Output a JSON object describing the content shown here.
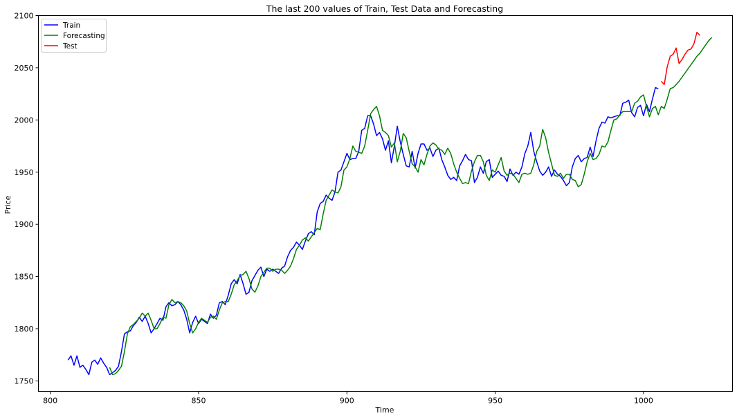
{
  "chart_data": {
    "type": "line",
    "title": "The last 200 values of Train, Test Data and Forecasting",
    "xlabel": "Time",
    "ylabel": "Price",
    "xlim": [
      796,
      1030
    ],
    "ylim": [
      1740,
      2100
    ],
    "xticks": [
      800,
      850,
      900,
      950,
      1000
    ],
    "yticks": [
      1750,
      1800,
      1850,
      1900,
      1950,
      2000,
      2050,
      2100
    ],
    "grid": false,
    "legend_position": "top-left",
    "series": [
      {
        "name": "Train",
        "color": "#0000ff",
        "x_start": 806,
        "values": [
          1770,
          1774,
          1765,
          1774,
          1763,
          1765,
          1761,
          1756,
          1768,
          1770,
          1766,
          1772,
          1767,
          1763,
          1756,
          1758,
          1760,
          1764,
          1778,
          1795,
          1797,
          1798,
          1803,
          1806,
          1811,
          1807,
          1812,
          1805,
          1796,
          1800,
          1805,
          1810,
          1808,
          1821,
          1825,
          1822,
          1823,
          1826,
          1823,
          1818,
          1809,
          1796,
          1806,
          1812,
          1805,
          1809,
          1807,
          1805,
          1814,
          1810,
          1813,
          1825,
          1826,
          1823,
          1832,
          1843,
          1847,
          1843,
          1852,
          1843,
          1833,
          1835,
          1846,
          1851,
          1856,
          1859,
          1850,
          1857,
          1855,
          1857,
          1855,
          1853,
          1858,
          1860,
          1869,
          1875,
          1878,
          1883,
          1880,
          1876,
          1884,
          1891,
          1893,
          1890,
          1912,
          1920,
          1922,
          1928,
          1925,
          1923,
          1931,
          1950,
          1952,
          1960,
          1968,
          1962,
          1963,
          1963,
          1970,
          1990,
          1992,
          2004,
          2004,
          1996,
          1985,
          1988,
          1982,
          1971,
          1980,
          1959,
          1975,
          1994,
          1979,
          1967,
          1956,
          1955,
          1970,
          1954,
          1968,
          1977,
          1977,
          1971,
          1973,
          1965,
          1971,
          1973,
          1962,
          1955,
          1947,
          1943,
          1945,
          1942,
          1956,
          1961,
          1967,
          1962,
          1961,
          1940,
          1945,
          1955,
          1949,
          1960,
          1962,
          1945,
          1948,
          1951,
          1947,
          1946,
          1941,
          1953,
          1947,
          1950,
          1948,
          1955,
          1968,
          1975,
          1988,
          1970,
          1960,
          1951,
          1947,
          1950,
          1955,
          1946,
          1952,
          1948,
          1946,
          1942,
          1937,
          1940,
          1955,
          1963,
          1966,
          1960,
          1963,
          1964,
          1974,
          1965,
          1980,
          1992,
          1998,
          1997,
          2003,
          2002,
          2003,
          2004,
          2004,
          2016,
          2017,
          2019,
          2007,
          2003,
          2012,
          2014,
          2004,
          2015,
          2008,
          2020,
          2031,
          2030
        ]
      },
      {
        "name": "Forecasting",
        "color": "#008000",
        "x_start": 820,
        "values": [
          1763,
          1756,
          1757,
          1760,
          1764,
          1778,
          1795,
          1802,
          1804,
          1807,
          1810,
          1815,
          1812,
          1815,
          1808,
          1800,
          1800,
          1805,
          1811,
          1810,
          1823,
          1828,
          1825,
          1826,
          1825,
          1822,
          1817,
          1805,
          1796,
          1800,
          1806,
          1810,
          1808,
          1806,
          1811,
          1812,
          1809,
          1818,
          1825,
          1826,
          1826,
          1833,
          1842,
          1846,
          1851,
          1852,
          1855,
          1848,
          1838,
          1835,
          1841,
          1850,
          1854,
          1858,
          1858,
          1855,
          1857,
          1857,
          1856,
          1853,
          1856,
          1860,
          1867,
          1876,
          1880,
          1885,
          1887,
          1884,
          1888,
          1892,
          1896,
          1895,
          1910,
          1923,
          1928,
          1933,
          1931,
          1930,
          1936,
          1952,
          1955,
          1963,
          1975,
          1970,
          1969,
          1968,
          1975,
          1990,
          2006,
          2010,
          2013,
          2004,
          1990,
          1988,
          1985,
          1974,
          1978,
          1960,
          1970,
          1987,
          1983,
          1970,
          1958,
          1955,
          1950,
          1962,
          1957,
          1967,
          1975,
          1978,
          1976,
          1972,
          1971,
          1967,
          1973,
          1968,
          1958,
          1950,
          1944,
          1939,
          1940,
          1939,
          1951,
          1960,
          1966,
          1966,
          1960,
          1947,
          1942,
          1952,
          1950,
          1957,
          1964,
          1951,
          1947,
          1949,
          1948,
          1944,
          1940,
          1948,
          1949,
          1948,
          1949,
          1957,
          1970,
          1975,
          1991,
          1983,
          1969,
          1958,
          1947,
          1946,
          1949,
          1944,
          1948,
          1948,
          1943,
          1942,
          1936,
          1938,
          1948,
          1960,
          1968,
          1962,
          1963,
          1967,
          1975,
          1974,
          1979,
          1990,
          2000,
          2001,
          2005,
          2008,
          2008,
          2008,
          2008,
          2016,
          2018,
          2022,
          2024,
          2013,
          2003,
          2011,
          2013,
          2005,
          2013,
          2011,
          2020,
          2030,
          2031,
          2034,
          2037,
          2041,
          2045,
          2049,
          2053,
          2057,
          2061,
          2064,
          2068,
          2072,
          2076,
          2079
        ]
      },
      {
        "name": "Test",
        "color": "#ff0000",
        "x_start": 1006,
        "values": [
          2037,
          2034,
          2051,
          2061,
          2063,
          2069,
          2054,
          2058,
          2063,
          2067,
          2068,
          2073,
          2084,
          2081
        ]
      }
    ]
  }
}
